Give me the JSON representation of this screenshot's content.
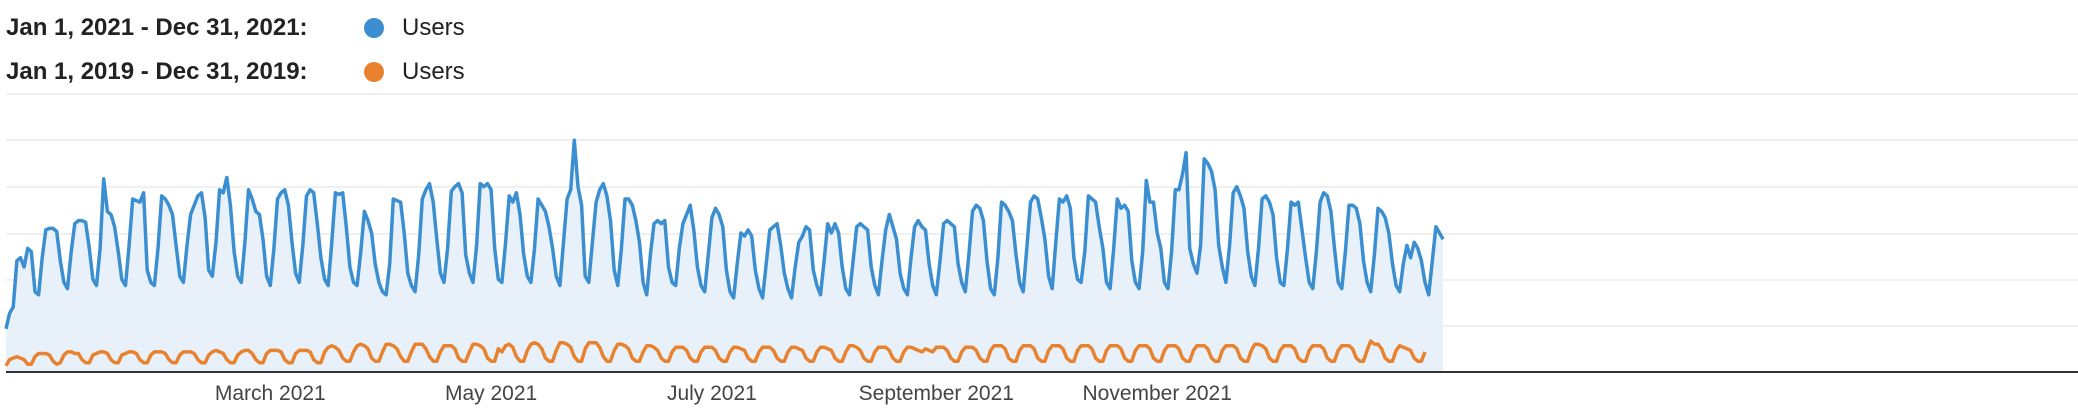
{
  "chart_data": {
    "type": "line",
    "title": "",
    "xlabel": "",
    "ylabel": "",
    "grid": true,
    "legend_placement": "top-left",
    "x_tick_labels": [
      "March 2021",
      "May 2021",
      "July 2021",
      "September 2021",
      "November 2021"
    ],
    "series": [
      {
        "range": "Jan 1, 2021 - Dec 31, 2021:",
        "name": "Users",
        "color": "#3b8fd0",
        "x_start": "2021-01-01",
        "x_end": "2021-12-31",
        "values": [
          28,
          38,
          42,
          72,
          74,
          68,
          80,
          78,
          52,
          50,
          74,
          92,
          93,
          93,
          91,
          72,
          58,
          54,
          78,
          96,
          98,
          98,
          97,
          80,
          60,
          56,
          80,
          125,
          104,
          102,
          94,
          78,
          60,
          56,
          82,
          112,
          111,
          110,
          116,
          66,
          58,
          56,
          80,
          114,
          112,
          108,
          102,
          82,
          62,
          58,
          82,
          102,
          108,
          114,
          116,
          100,
          66,
          62,
          84,
          118,
          116,
          126,
          108,
          78,
          62,
          58,
          84,
          118,
          112,
          104,
          102,
          86,
          62,
          56,
          80,
          112,
          116,
          118,
          108,
          84,
          64,
          58,
          82,
          114,
          118,
          116,
          96,
          74,
          60,
          56,
          84,
          116,
          115,
          116,
          94,
          68,
          58,
          56,
          78,
          104,
          98,
          90,
          70,
          58,
          52,
          50,
          70,
          112,
          111,
          110,
          90,
          64,
          56,
          52,
          76,
          112,
          118,
          122,
          110,
          86,
          64,
          58,
          80,
          117,
          120,
          122,
          116,
          76,
          64,
          58,
          82,
          122,
          120,
          122,
          118,
          80,
          60,
          58,
          84,
          114,
          110,
          116,
          102,
          76,
          62,
          58,
          80,
          112,
          108,
          104,
          94,
          80,
          62,
          56,
          84,
          112,
          118,
          150,
          120,
          108,
          62,
          58,
          84,
          110,
          118,
          122,
          114,
          98,
          66,
          56,
          80,
          112,
          112,
          108,
          98,
          84,
          58,
          50,
          76,
          96,
          98,
          96,
          98,
          68,
          58,
          56,
          80,
          96,
          102,
          108,
          92,
          68,
          56,
          52,
          76,
          100,
          106,
          102,
          94,
          66,
          52,
          48,
          70,
          90,
          88,
          92,
          88,
          66,
          54,
          48,
          70,
          92,
          94,
          96,
          82,
          64,
          54,
          48,
          68,
          84,
          88,
          94,
          92,
          66,
          56,
          50,
          72,
          96,
          90,
          96,
          90,
          68,
          54,
          50,
          72,
          94,
          96,
          94,
          92,
          68,
          56,
          50,
          72,
          92,
          102,
          94,
          86,
          64,
          54,
          50,
          74,
          94,
          98,
          94,
          92,
          70,
          56,
          50,
          72,
          96,
          98,
          96,
          94,
          70,
          58,
          52,
          76,
          104,
          108,
          106,
          98,
          72,
          54,
          50,
          74,
          110,
          108,
          104,
          98,
          76,
          58,
          52,
          80,
          110,
          114,
          112,
          100,
          86,
          62,
          54,
          84,
          112,
          110,
          114,
          106,
          74,
          60,
          58,
          78,
          114,
          112,
          110,
          94,
          80,
          58,
          54,
          80,
          112,
          106,
          108,
          104,
          72,
          58,
          54,
          78,
          124,
          110,
          110,
          90,
          80,
          58,
          54,
          78,
          118,
          118,
          128,
          142,
          80,
          70,
          64,
          82,
          138,
          135,
          130,
          118,
          82,
          68,
          58,
          82,
          116,
          120,
          114,
          106,
          78,
          62,
          56,
          80,
          112,
          114,
          110,
          102,
          74,
          58,
          56,
          80,
          110,
          108,
          110,
          92,
          74,
          58,
          54,
          78,
          110,
          116,
          114,
          104,
          80,
          58,
          54,
          78,
          108,
          108,
          106,
          96,
          72,
          58,
          52,
          76,
          106,
          104,
          100,
          90,
          70,
          56,
          52,
          70,
          82,
          74,
          84,
          80,
          72,
          58,
          50,
          72,
          94,
          90,
          86
        ]
      },
      {
        "range": "Jan 1, 2019 - Dec 31, 2019:",
        "name": "Users",
        "color": "#e8822e",
        "x_start": "2019-01-01",
        "x_end": "2019-12-31",
        "values": [
          4,
          8,
          9,
          10,
          9,
          8,
          5,
          5,
          10,
          12,
          12,
          12,
          11,
          7,
          5,
          6,
          11,
          13,
          13,
          12,
          12,
          8,
          6,
          6,
          11,
          12,
          13,
          13,
          12,
          8,
          6,
          6,
          11,
          12,
          13,
          13,
          12,
          8,
          6,
          6,
          11,
          13,
          13,
          13,
          12,
          8,
          6,
          6,
          11,
          13,
          13,
          13,
          12,
          8,
          6,
          6,
          11,
          13,
          14,
          13,
          12,
          8,
          6,
          6,
          11,
          13,
          14,
          14,
          12,
          8,
          6,
          6,
          12,
          14,
          14,
          14,
          13,
          8,
          6,
          6,
          12,
          14,
          14,
          14,
          13,
          8,
          6,
          6,
          13,
          16,
          17,
          16,
          14,
          9,
          7,
          7,
          13,
          17,
          18,
          17,
          15,
          9,
          7,
          7,
          13,
          18,
          18,
          17,
          15,
          10,
          7,
          7,
          13,
          18,
          18,
          18,
          15,
          10,
          7,
          7,
          13,
          17,
          17,
          17,
          15,
          9,
          7,
          7,
          13,
          18,
          18,
          17,
          15,
          9,
          7,
          7,
          15,
          13,
          17,
          18,
          16,
          10,
          7,
          7,
          14,
          18,
          19,
          18,
          15,
          9,
          7,
          7,
          14,
          19,
          19,
          18,
          16,
          10,
          7,
          7,
          15,
          19,
          19,
          19,
          16,
          10,
          7,
          7,
          14,
          18,
          18,
          17,
          15,
          9,
          7,
          7,
          13,
          17,
          17,
          16,
          14,
          9,
          7,
          7,
          13,
          16,
          16,
          16,
          14,
          9,
          7,
          7,
          13,
          16,
          16,
          16,
          14,
          9,
          7,
          7,
          13,
          16,
          16,
          15,
          14,
          9,
          7,
          7,
          13,
          16,
          16,
          16,
          14,
          9,
          7,
          7,
          13,
          16,
          16,
          15,
          14,
          9,
          7,
          7,
          13,
          16,
          16,
          15,
          14,
          9,
          7,
          7,
          13,
          17,
          17,
          16,
          14,
          9,
          7,
          7,
          13,
          16,
          16,
          16,
          14,
          9,
          7,
          7,
          13,
          16,
          16,
          15,
          14,
          13,
          15,
          14,
          13,
          16,
          16,
          16,
          14,
          9,
          7,
          7,
          13,
          16,
          16,
          16,
          14,
          9,
          7,
          7,
          14,
          17,
          17,
          17,
          15,
          9,
          7,
          7,
          14,
          17,
          17,
          17,
          15,
          9,
          7,
          7,
          14,
          17,
          17,
          17,
          15,
          9,
          7,
          7,
          14,
          17,
          17,
          17,
          15,
          9,
          7,
          7,
          14,
          17,
          17,
          17,
          15,
          9,
          7,
          7,
          14,
          17,
          17,
          17,
          15,
          9,
          7,
          7,
          14,
          17,
          17,
          17,
          15,
          9,
          7,
          7,
          14,
          17,
          17,
          17,
          15,
          9,
          7,
          7,
          14,
          17,
          17,
          17,
          15,
          9,
          7,
          7,
          14,
          18,
          18,
          17,
          15,
          9,
          7,
          7,
          14,
          17,
          17,
          17,
          15,
          9,
          7,
          7,
          14,
          17,
          17,
          17,
          15,
          9,
          7,
          7,
          14,
          17,
          17,
          17,
          15,
          9,
          7,
          7,
          14,
          20,
          18,
          18,
          15,
          9,
          7,
          7,
          14,
          17,
          16,
          15,
          14,
          9,
          7,
          7,
          13
        ]
      }
    ]
  }
}
